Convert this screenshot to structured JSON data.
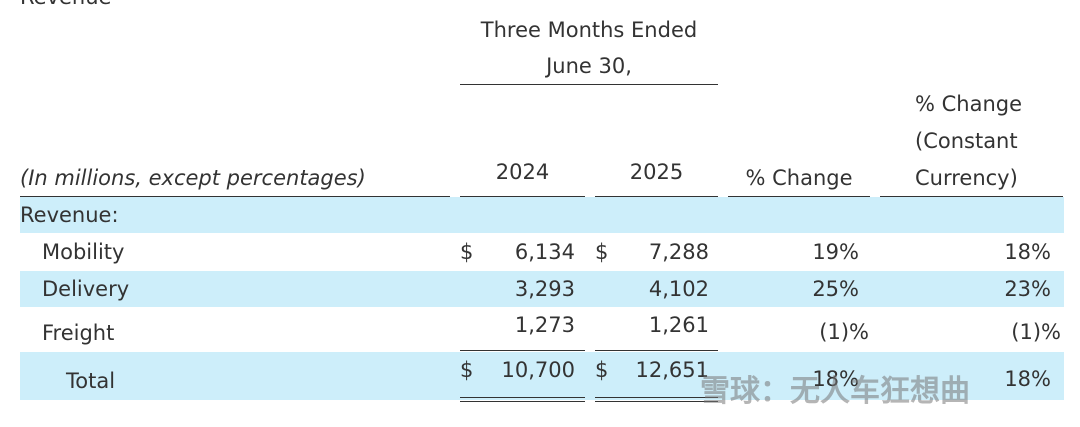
{
  "section_title": "Revenue",
  "header": {
    "period": "Three Months Ended",
    "period_date": "June 30,",
    "caption": "(In millions, except percentages)",
    "year_1": "2024",
    "year_2": "2025",
    "change": "% Change",
    "change_cc": [
      "% Change",
      "(Constant",
      "Currency)"
    ]
  },
  "table": {
    "group_label": "Revenue:",
    "rows": [
      {
        "label": "Mobility",
        "currency_1": "$",
        "value_1": "6,134",
        "currency_2": "$",
        "value_2": "7,288",
        "change": "19%",
        "change_cc": "18%"
      },
      {
        "label": "Delivery",
        "value_1": "3,293",
        "value_2": "4,102",
        "change": "25%",
        "change_cc": "23%"
      },
      {
        "label": "Freight",
        "value_1": "1,273",
        "value_2": "1,261",
        "change": "(1)%",
        "change_cc": "(1)%"
      },
      {
        "label": "Total",
        "currency_1": "$",
        "value_1": "10,700",
        "currency_2": "$",
        "value_2": "12,651",
        "change": "18%",
        "change_cc": "18%"
      }
    ]
  },
  "watermark": "雪球：无人车狂想曲"
}
